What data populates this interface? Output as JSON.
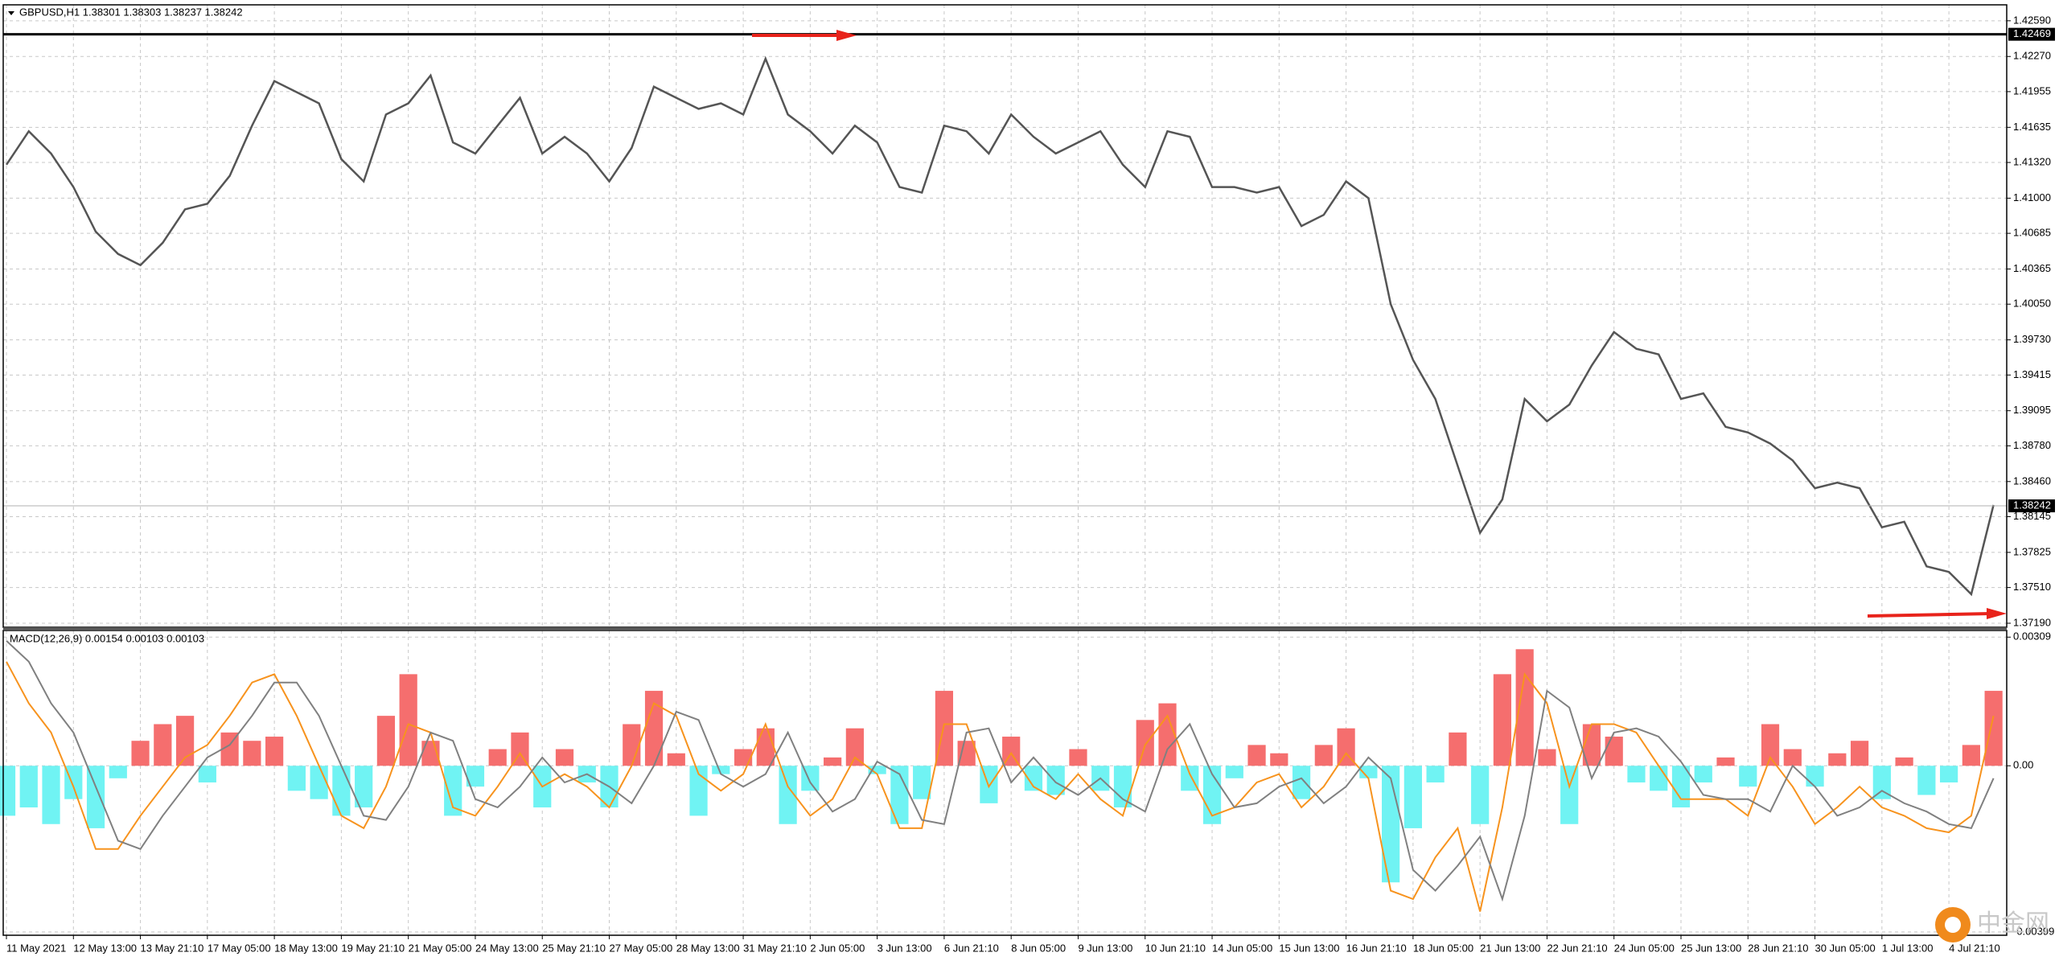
{
  "chart_data": [
    {
      "type": "line",
      "title": "GBPUSD,H1  1.38301 1.38303 1.38237 1.38242",
      "color": "#555555",
      "grid": true,
      "values": [
        1.413,
        1.416,
        1.414,
        1.411,
        1.407,
        1.405,
        1.404,
        1.406,
        1.409,
        1.4095,
        1.412,
        1.4165,
        1.4205,
        1.4195,
        1.4185,
        1.4135,
        1.4115,
        1.4175,
        1.4185,
        1.421,
        1.415,
        1.414,
        1.4165,
        1.419,
        1.414,
        1.4155,
        1.414,
        1.4115,
        1.4145,
        1.42,
        1.419,
        1.418,
        1.4185,
        1.4175,
        1.4225,
        1.4175,
        1.416,
        1.414,
        1.4165,
        1.415,
        1.411,
        1.4105,
        1.4165,
        1.416,
        1.414,
        1.4175,
        1.4155,
        1.414,
        1.415,
        1.416,
        1.413,
        1.411,
        1.416,
        1.4155,
        1.411,
        1.411,
        1.4105,
        1.411,
        1.4075,
        1.4085,
        1.4115,
        1.41,
        1.4005,
        1.3955,
        1.392,
        1.386,
        1.38,
        1.383,
        1.392,
        1.39,
        1.3915,
        1.395,
        1.398,
        1.3965,
        1.396,
        1.392,
        1.3925,
        1.3895,
        1.389,
        1.388,
        1.3865,
        1.384,
        1.3845,
        1.384,
        1.3805,
        1.381,
        1.377,
        1.3765,
        1.3745,
        1.3825
      ],
      "ylim": [
        1.37154,
        1.42733
      ],
      "yticks": [
        {
          "value": 1.4259,
          "label": "1.42590"
        },
        {
          "value": 1.4227,
          "label": "1.42270"
        },
        1.41955,
        1.41635,
        {
          "value": 1.4132,
          "label": "1.41320"
        },
        {
          "value": 1.41,
          "label": "1.41000"
        },
        1.40685,
        1.40365,
        {
          "value": 1.4005,
          "label": "1.40050"
        },
        {
          "value": 1.3973,
          "label": "1.39730"
        },
        1.39415,
        1.39095,
        {
          "value": 1.3878,
          "label": "1.38780"
        },
        {
          "value": 1.3846,
          "label": "1.38460"
        },
        1.38145,
        1.37825,
        {
          "value": 1.3751,
          "label": "1.37510"
        },
        {
          "value": 1.3719,
          "label": "1.37190"
        }
      ],
      "level_line": 1.42469,
      "level_color": "#000000",
      "last_price": 1.38242
    },
    {
      "type": "bar",
      "title": "MACD(12,26,9) 0.00154 0.00103 0.00103",
      "grid": true,
      "positive_color": "#f56e6e",
      "negative_color": "#70f3f3",
      "categories": [
        "11 May 2021",
        null,
        null,
        "12 May 13:00",
        null,
        null,
        "13 May 21:10",
        null,
        null,
        "17 May 05:00",
        null,
        null,
        "18 May 13:00",
        null,
        null,
        "19 May 21:10",
        null,
        null,
        "21 May 05:00",
        null,
        null,
        "24 May 13:00",
        null,
        null,
        "25 May 21:10",
        null,
        null,
        "27 May 05:00",
        null,
        null,
        "28 May 13:00",
        null,
        null,
        "31 May 21:10",
        null,
        null,
        "2 Jun 05:00",
        null,
        null,
        "3 Jun 13:00",
        null,
        null,
        "6 Jun 21:10",
        null,
        null,
        "8 Jun 05:00",
        null,
        null,
        "9 Jun 13:00",
        null,
        null,
        "10 Jun 21:10",
        null,
        null,
        "14 Jun 05:00",
        null,
        null,
        "15 Jun 13:00",
        null,
        null,
        "16 Jun 21:10",
        null,
        null,
        "18 Jun 05:00",
        null,
        null,
        "21 Jun 13:00",
        null,
        null,
        "22 Jun 21:10",
        null,
        null,
        "24 Jun 05:00",
        null,
        null,
        "25 Jun 13:00",
        null,
        null,
        "28 Jun 21:10",
        null,
        null,
        "30 Jun 05:00",
        null,
        null,
        "1 Jul 13:00",
        null,
        null,
        "4 Jul 21:10",
        null,
        null
      ],
      "values": [
        -0.0012,
        -0.001,
        -0.0014,
        -0.0008,
        -0.0015,
        -0.0003,
        0.0006,
        0.001,
        0.0012,
        -0.0004,
        0.0008,
        0.0006,
        0.0007,
        -0.0006,
        -0.0008,
        -0.0012,
        -0.001,
        0.0012,
        0.0022,
        0.0006,
        -0.0012,
        -0.0005,
        0.0004,
        0.0008,
        -0.001,
        0.0004,
        -0.0004,
        -0.001,
        0.001,
        0.0018,
        0.0003,
        -0.0012,
        -0.0002,
        0.0004,
        0.0009,
        -0.0014,
        -0.0006,
        0.0002,
        0.0009,
        -0.0002,
        -0.0014,
        -0.0008,
        0.0018,
        0.0006,
        -0.0009,
        0.0007,
        -0.0006,
        -0.0007,
        0.0004,
        -0.0006,
        -0.001,
        0.0011,
        0.0015,
        -0.0006,
        -0.0014,
        -0.0003,
        0.0005,
        0.0003,
        -0.0008,
        0.0005,
        0.0009,
        -0.0003,
        -0.0028,
        -0.0015,
        -0.0004,
        0.0008,
        -0.0014,
        0.0022,
        0.0028,
        0.0004,
        -0.0014,
        0.001,
        0.0007,
        -0.0004,
        -0.0006,
        -0.001,
        -0.0004,
        0.0002,
        -0.0005,
        0.001,
        0.0004,
        -0.0005,
        0.0003,
        0.0006,
        -0.0008,
        0.0002,
        -0.0007,
        -0.0004,
        0.0005,
        0.0018
      ],
      "series": [
        {
          "color": "#f7931e",
          "values": [
            0.0025,
            0.0015,
            0.0008,
            -0.0005,
            -0.002,
            -0.002,
            -0.0012,
            -0.0005,
            0.0002,
            0.0005,
            0.0012,
            0.002,
            0.0022,
            0.0012,
            0,
            -0.0012,
            -0.0015,
            -0.0005,
            0.001,
            0.0008,
            -0.001,
            -0.0012,
            -0.0005,
            0.0003,
            -0.0005,
            -0.0002,
            -0.0005,
            -0.001,
            0,
            0.0015,
            0.0012,
            -0.0002,
            -0.0006,
            -0.0002,
            0.001,
            -0.0005,
            -0.0012,
            -0.0008,
            0.0002,
            -0.0002,
            -0.0015,
            -0.0015,
            0.001,
            0.001,
            -0.0005,
            0.0003,
            -0.0005,
            -0.0008,
            -0.0002,
            -0.0008,
            -0.0012,
            0.0005,
            0.0012,
            -0.0002,
            -0.0012,
            -0.001,
            -0.0004,
            -0.0002,
            -0.001,
            -0.0005,
            0.0003,
            -0.0003,
            -0.003,
            -0.0032,
            -0.0022,
            -0.0015,
            -0.0035,
            -0.001,
            0.0022,
            0.0015,
            -0.0005,
            0.001,
            0.001,
            0.0008,
            0,
            -0.0008,
            -0.0008,
            -0.0008,
            -0.0012,
            0.0002,
            -0.0005,
            -0.0014,
            -0.001,
            -0.0005,
            -0.001,
            -0.0012,
            -0.0015,
            -0.0016,
            -0.0012,
            0.0012
          ]
        },
        {
          "color": "#808080",
          "values": [
            0.003,
            0.0025,
            0.0015,
            0.0008,
            -0.0005,
            -0.0018,
            -0.002,
            -0.0012,
            -0.0005,
            0.0002,
            0.0005,
            0.0012,
            0.002,
            0.002,
            0.0012,
            0,
            -0.0012,
            -0.0013,
            -0.0005,
            0.0008,
            0.0006,
            -0.0008,
            -0.001,
            -0.0005,
            0.0002,
            -0.0004,
            -0.0002,
            -0.0005,
            -0.0009,
            0,
            0.0013,
            0.0011,
            -0.0002,
            -0.0005,
            -0.0002,
            0.0008,
            -0.0004,
            -0.0011,
            -0.0008,
            0.0001,
            -0.0002,
            -0.0013,
            -0.0014,
            0.0008,
            0.0009,
            -0.0004,
            0.0002,
            -0.0004,
            -0.0007,
            -0.0003,
            -0.0008,
            -0.0011,
            0.0004,
            0.001,
            -0.0002,
            -0.001,
            -0.0009,
            -0.0005,
            -0.0003,
            -0.0009,
            -0.0005,
            0.0002,
            -0.0003,
            -0.0025,
            -0.003,
            -0.0024,
            -0.0017,
            -0.0032,
            -0.0012,
            0.0018,
            0.0014,
            -0.0003,
            0.0008,
            0.0009,
            0.0007,
            0.0001,
            -0.0007,
            -0.0008,
            -0.0008,
            -0.0011,
            0,
            -0.0005,
            -0.0012,
            -0.001,
            -0.0006,
            -0.0009,
            -0.0011,
            -0.0014,
            -0.0015,
            -0.0003
          ]
        }
      ],
      "ylim": [
        -0.00407,
        0.00325
      ],
      "yticks": [
        0.00309,
        {
          "value": 0,
          "label": "0.00"
        },
        -0.00399
      ]
    }
  ],
  "watermark": "中金网"
}
